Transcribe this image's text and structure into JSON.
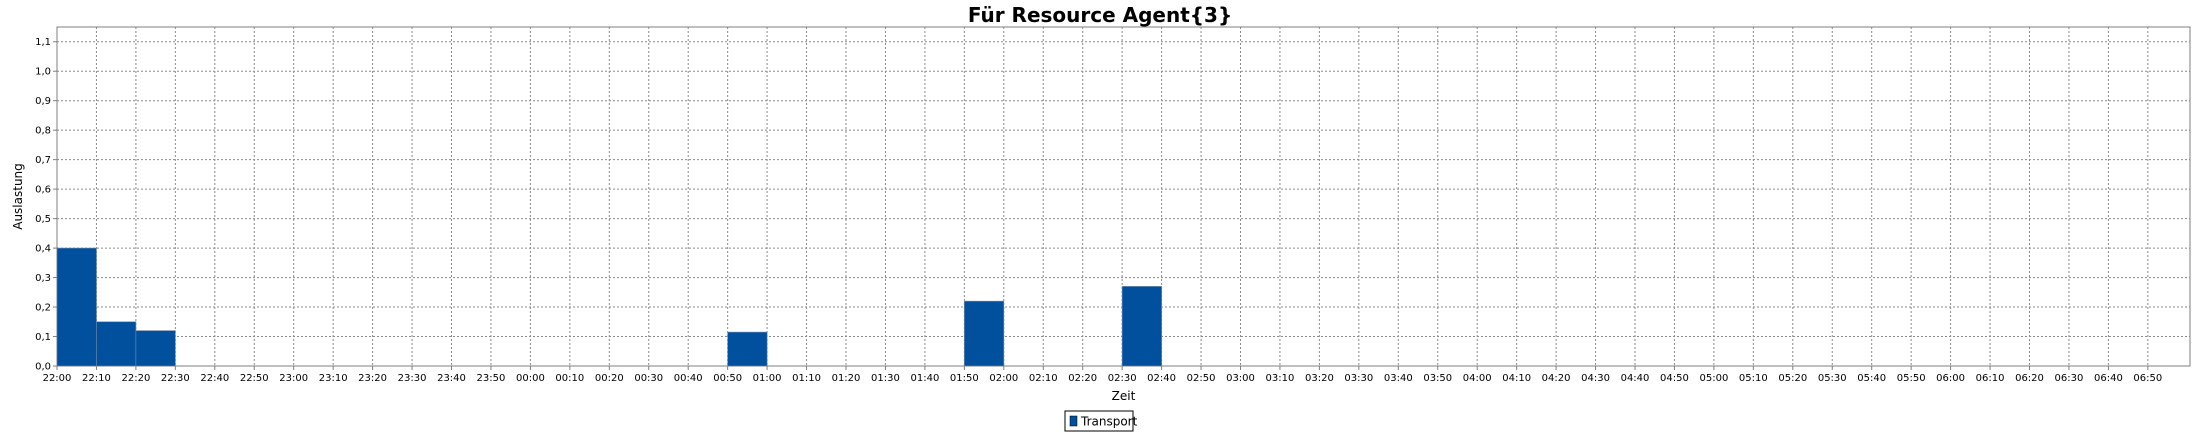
{
  "chart_data": {
    "type": "bar",
    "title": "Für Resource Agent{3}",
    "xlabel": "Zeit",
    "ylabel": "Auslastung",
    "ylim": [
      0,
      1.15
    ],
    "yticks": [
      "0,0",
      "0,1",
      "0,2",
      "0,3",
      "0,4",
      "0,5",
      "0,6",
      "0,7",
      "0,8",
      "0,9",
      "1,0",
      "1,1"
    ],
    "grid": true,
    "legend_position": "bottom-center",
    "categories": [
      "22:00",
      "22:10",
      "22:20",
      "22:30",
      "22:40",
      "22:50",
      "23:00",
      "23:10",
      "23:20",
      "23:30",
      "23:40",
      "23:50",
      "00:00",
      "00:10",
      "00:20",
      "00:30",
      "00:40",
      "00:50",
      "01:00",
      "01:10",
      "01:20",
      "01:30",
      "01:40",
      "01:50",
      "02:00",
      "02:10",
      "02:20",
      "02:30",
      "02:40",
      "02:50",
      "03:00",
      "03:10",
      "03:20",
      "03:30",
      "03:40",
      "03:50",
      "04:00",
      "04:10",
      "04:20",
      "04:30",
      "04:40",
      "04:50",
      "05:00",
      "05:10",
      "05:20",
      "05:30",
      "05:40",
      "05:50",
      "06:00",
      "06:10",
      "06:20",
      "06:30",
      "06:40",
      "06:50"
    ],
    "series": [
      {
        "name": "Transport",
        "color": "#00509e",
        "values": [
          0.4,
          0.15,
          0.12,
          0,
          0,
          0,
          0,
          0,
          0,
          0,
          0,
          0,
          0,
          0,
          0,
          0,
          0,
          0.115,
          0,
          0,
          0,
          0,
          0,
          0.22,
          0,
          0,
          0,
          0.27,
          0,
          0,
          0,
          0,
          0,
          0,
          0,
          0,
          0,
          0,
          0,
          0,
          0,
          0,
          0,
          0,
          0,
          0,
          0,
          0,
          0,
          0,
          0,
          0,
          0,
          0
        ]
      }
    ]
  }
}
